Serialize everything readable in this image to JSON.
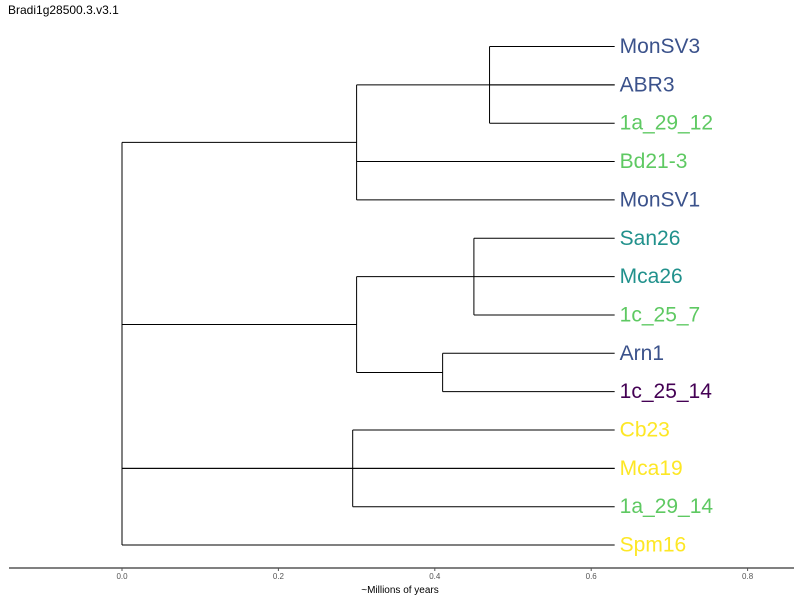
{
  "title": "Bradi1g28500.3.v3.1",
  "x_axis": {
    "label": "~Millions of years",
    "ticks": [
      {
        "value": 0.0,
        "label": "0.0"
      },
      {
        "value": 0.2,
        "label": "0.2"
      },
      {
        "value": 0.4,
        "label": "0.4"
      },
      {
        "value": 0.6,
        "label": "0.6"
      },
      {
        "value": 0.8,
        "label": "0.8"
      }
    ]
  },
  "tree": {
    "type": "dendrogram",
    "leaves": [
      {
        "id": "MonSV3",
        "label": "MonSV3",
        "color": "#3b528b"
      },
      {
        "id": "ABR3",
        "label": "ABR3",
        "color": "#3b528b"
      },
      {
        "id": "1a_29_12",
        "label": "1a_29_12",
        "color": "#5ec962"
      },
      {
        "id": "Bd21-3",
        "label": "Bd21-3",
        "color": "#5ec962"
      },
      {
        "id": "MonSV1",
        "label": "MonSV1",
        "color": "#3b528b"
      },
      {
        "id": "San26",
        "label": "San26",
        "color": "#21918c"
      },
      {
        "id": "Mca26",
        "label": "Mca26",
        "color": "#21918c"
      },
      {
        "id": "1c_25_7",
        "label": "1c_25_7",
        "color": "#5ec962"
      },
      {
        "id": "Arn1",
        "label": "Arn1",
        "color": "#3b528b"
      },
      {
        "id": "1c_25_14",
        "label": "1c_25_14",
        "color": "#440154"
      },
      {
        "id": "Cb23",
        "label": "Cb23",
        "color": "#fde725"
      },
      {
        "id": "Mca19",
        "label": "Mca19",
        "color": "#fde725"
      },
      {
        "id": "1a_29_14",
        "label": "1a_29_14",
        "color": "#5ec962"
      },
      {
        "id": "Spm16",
        "label": "Spm16",
        "color": "#fde725"
      }
    ],
    "leaf_time": 0.63,
    "nodes": [
      {
        "id": "n1",
        "time": 0.47,
        "children": [
          "MonSV3",
          "1a_29_12"
        ]
      },
      {
        "id": "n2",
        "time": 0.3,
        "children": [
          "ABR3",
          "MonSV1"
        ]
      },
      {
        "id": "n3",
        "time": 0.45,
        "children": [
          "San26",
          "1c_25_7"
        ]
      },
      {
        "id": "n4",
        "time": 0.41,
        "children": [
          "Arn1",
          "1c_25_14"
        ]
      },
      {
        "id": "n5",
        "time": 0.3,
        "children": [
          "n3",
          "n4"
        ]
      },
      {
        "id": "n6",
        "time": 0.295,
        "children": [
          "Cb23",
          "1a_29_14"
        ]
      },
      {
        "id": "n7",
        "time": 0.0,
        "children": [
          "n2",
          "n5",
          "n6",
          "Spm16"
        ]
      }
    ],
    "orphan_branches": [
      {
        "from_node": "n1",
        "to_leaf": "ABR3"
      },
      {
        "from_node": "n2",
        "to_leaf": "Bd21-3"
      },
      {
        "from_node": "n3",
        "to_leaf": "Mca26"
      },
      {
        "from_node": "n6",
        "to_leaf": "Mca19"
      },
      {
        "from_node": "n7",
        "to_leaf": "Mca19"
      }
    ]
  }
}
